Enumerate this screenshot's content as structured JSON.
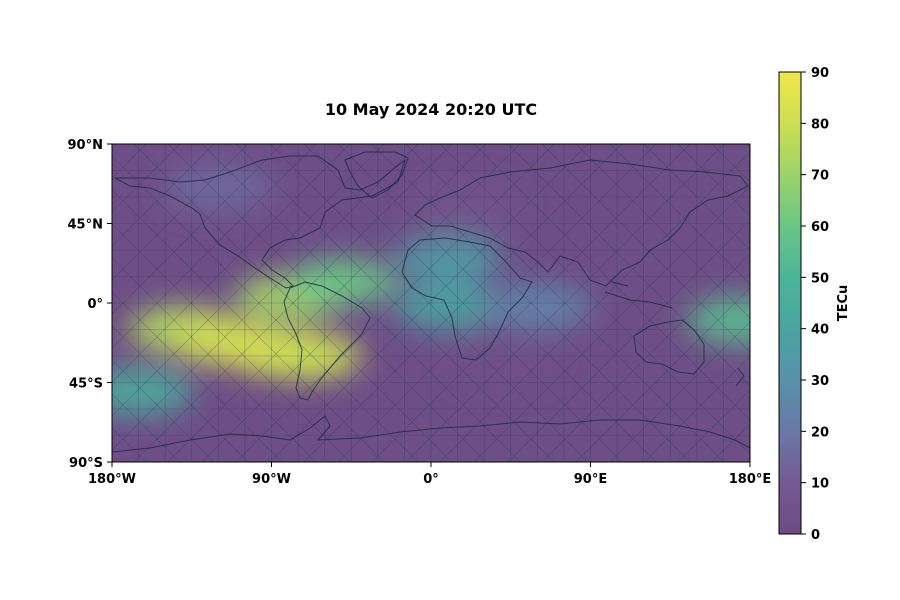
{
  "title": "10 May 2024 20:20 UTC",
  "map": {
    "projection": "plate-carree",
    "extent_lon": [
      -180,
      180
    ],
    "extent_lat": [
      -90,
      90
    ],
    "x_ticks": [
      {
        "value": -180,
        "label": "180°W"
      },
      {
        "value": -90,
        "label": "90°W"
      },
      {
        "value": 0,
        "label": "0°"
      },
      {
        "value": 90,
        "label": "90°E"
      },
      {
        "value": 180,
        "label": "180°E"
      }
    ],
    "y_ticks": [
      {
        "value": 90,
        "label": "90°N"
      },
      {
        "value": 45,
        "label": "45°N"
      },
      {
        "value": 0,
        "label": "0°"
      },
      {
        "value": -45,
        "label": "45°S"
      },
      {
        "value": -90,
        "label": "90°S"
      }
    ],
    "colormap": "viridis",
    "overlay": "triangular-mesh",
    "features": [
      "coastlines"
    ]
  },
  "colorbar": {
    "label": "TECu",
    "min": 0,
    "max": 90,
    "ticks": [
      0,
      10,
      20,
      30,
      40,
      50,
      60,
      70,
      80,
      90
    ]
  },
  "chart_data": {
    "type": "heatmap",
    "title": "10 May 2024 20:20 UTC",
    "variable": "TECu",
    "value_range": [
      0,
      90
    ],
    "background_value": 10,
    "approximate_features": [
      {
        "lon": -140,
        "lat": -15,
        "value": 75
      },
      {
        "lon": -115,
        "lat": -22,
        "value": 82
      },
      {
        "lon": -85,
        "lat": -28,
        "value": 85
      },
      {
        "lon": -70,
        "lat": -30,
        "value": 80
      },
      {
        "lon": -80,
        "lat": 3,
        "value": 72
      },
      {
        "lon": -50,
        "lat": 12,
        "value": 60
      },
      {
        "lon": -165,
        "lat": -50,
        "value": 45
      },
      {
        "lon": 10,
        "lat": 25,
        "value": 35
      },
      {
        "lon": 10,
        "lat": -2,
        "value": 40
      },
      {
        "lon": 60,
        "lat": -2,
        "value": 25
      },
      {
        "lon": 175,
        "lat": -10,
        "value": 55
      },
      {
        "lon": 40,
        "lat": -35,
        "value": 3
      },
      {
        "lon": 20,
        "lat": 55,
        "value": 5
      },
      {
        "lon": -120,
        "lat": 65,
        "value": 15
      }
    ]
  }
}
